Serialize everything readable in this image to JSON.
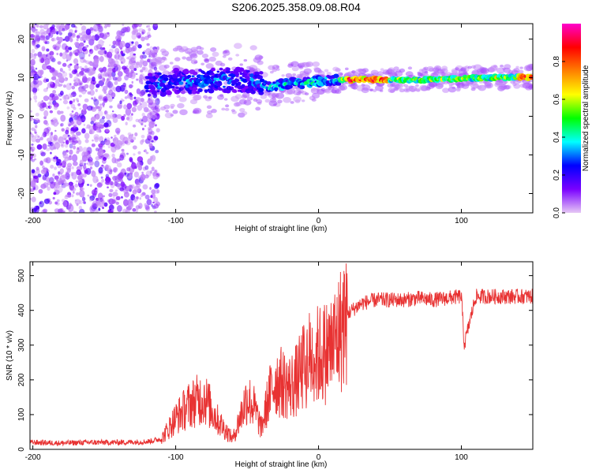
{
  "figure": {
    "title": "S206.2025.358.09.08.R04"
  },
  "chart_data": [
    {
      "type": "heatmap",
      "xlabel": "Height of straight line (km)",
      "ylabel": "Frequency (Hz)",
      "xlim": [
        -202,
        150
      ],
      "ylim": [
        -25,
        24
      ],
      "xticks": [
        -200,
        -100,
        0,
        100
      ],
      "yticks": [
        -20,
        -10,
        0,
        10,
        20
      ],
      "colorbar": {
        "label": "Normalized spectral amplitude",
        "range": [
          0,
          1
        ],
        "ticks": [
          "0.0",
          "0.2",
          "0.4",
          "0.6",
          "0.8"
        ],
        "colors": [
          "#e6c8f5",
          "#7a00ff",
          "#0000ff",
          "#00ffff",
          "#00ff00",
          "#ffff00",
          "#ff8000",
          "#ff0000",
          "#ff00cc"
        ]
      },
      "ridge": {
        "description_points_x": [
          -120,
          -100,
          -80,
          -60,
          -45,
          -35,
          -20,
          0,
          20,
          40,
          60,
          80,
          100,
          120,
          150
        ],
        "frequency_hz": [
          8,
          9,
          9,
          9.5,
          9,
          7.5,
          8.5,
          9,
          9.5,
          9.5,
          9.5,
          9.5,
          9.8,
          10,
          10.2
        ]
      },
      "grid": false
    },
    {
      "type": "line",
      "xlabel": "Height of straight line (km)",
      "ylabel": "SNR (10 * v/v)",
      "xlim": [
        -202,
        150
      ],
      "ylim": [
        0,
        540
      ],
      "xticks": [
        -200,
        -100,
        0,
        100
      ],
      "yticks": [
        0,
        100,
        200,
        300,
        400,
        500
      ],
      "series": [
        {
          "color": "#e83232",
          "x": [
            -200,
            -180,
            -160,
            -140,
            -120,
            -110,
            -100,
            -90,
            -80,
            -70,
            -60,
            -50,
            -45,
            -40,
            -35,
            -30,
            -25,
            -20,
            -15,
            -10,
            -5,
            0,
            5,
            10,
            15,
            20,
            30,
            40,
            50,
            60,
            70,
            80,
            90,
            100,
            102,
            110,
            120,
            130,
            140,
            150
          ],
          "y": [
            20,
            18,
            20,
            20,
            22,
            30,
            90,
            130,
            150,
            80,
            30,
            150,
            120,
            60,
            150,
            200,
            190,
            180,
            200,
            240,
            270,
            270,
            280,
            300,
            340,
            390,
            420,
            430,
            430,
            430,
            435,
            430,
            435,
            440,
            300,
            440,
            440,
            440,
            440,
            440
          ]
        }
      ],
      "grid": false
    }
  ]
}
